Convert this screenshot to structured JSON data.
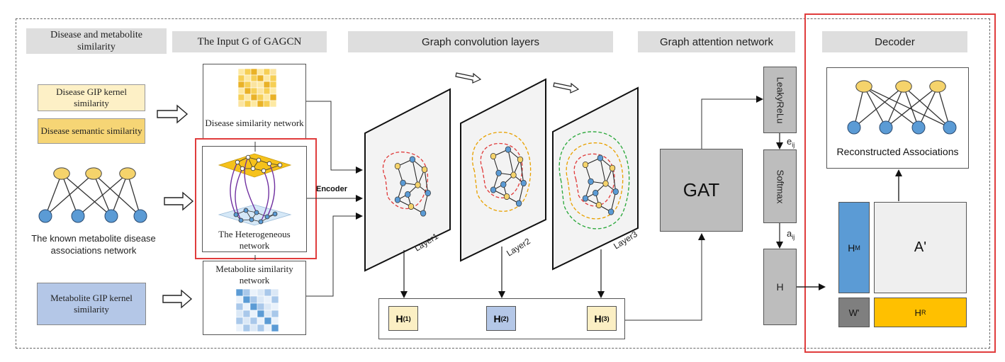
{
  "headers": {
    "similarity": "Disease and metabolite similarity",
    "input": "The Input G of GAGCN",
    "gcn": "Graph convolution layers",
    "gat": "Graph attention network",
    "decoder": "Decoder"
  },
  "inputs": {
    "disease_gip": "Disease GIP kernel similarity",
    "disease_semantic": "Disease semantic similarity",
    "known_network": "The known metabolite disease associations network",
    "metabolite_gip": "Metabolite GIP kernel similarity"
  },
  "graph_input": {
    "disease_network": "Disease similarity network",
    "hetero_network": "The Heterogeneous network",
    "metabolite_network": "Metabolite similarity network",
    "encoder": "Encoder"
  },
  "layers": [
    "Layer1",
    "Layer2",
    "Layer3"
  ],
  "h_outputs": [
    {
      "base": "H",
      "sup": "(1)",
      "color": "#fbefc4"
    },
    {
      "base": "H",
      "sup": "(2)",
      "color": "#b4c7e7"
    },
    {
      "base": "H",
      "sup": "(3)",
      "color": "#fbefc4"
    }
  ],
  "attention": {
    "gat": "GAT",
    "leakyrelu": "LeakyReLu",
    "eij_base": "e",
    "eij_sub": "ij",
    "softmax": "Softmax",
    "aij_base": "a",
    "aij_sub": "ij",
    "h": "H"
  },
  "decoder": {
    "reconstructed": "Reconstructed Associations",
    "hm_base": "H",
    "hm_sub": "M",
    "a_prime": "A'",
    "w_prime": "W'",
    "hr_base": "H",
    "hr_sub": "R"
  },
  "colors": {
    "disease_yellow": "#f5d36b",
    "metabolite_blue": "#5b9bd5",
    "header_gray": "#dedede",
    "highlight_red": "#e03c3c",
    "hr_gold": "#ffc000",
    "wprime_gray": "#7f7f7f"
  }
}
